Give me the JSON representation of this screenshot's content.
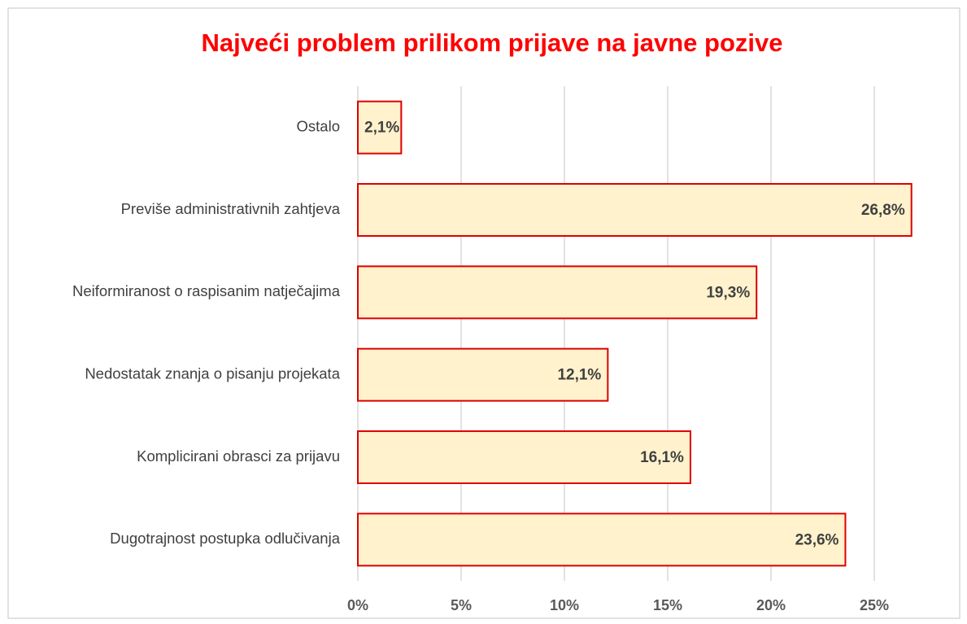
{
  "chart_data": {
    "type": "bar",
    "orientation": "horizontal",
    "title": "Najveći problem prilikom prijave na javne pozive",
    "categories": [
      "Ostalo",
      "Previše administrativnih zahtjeva",
      "Neiformiranost o raspisanim natječajima",
      "Nedostatak znanja o pisanju projekata",
      "Komplicirani obrasci za prijavu",
      "Dugotrajnost postupka odlučivanja"
    ],
    "values": [
      2.1,
      26.8,
      19.3,
      12.1,
      16.1,
      23.6
    ],
    "value_labels": [
      "2,1%",
      "26,8%",
      "19,3%",
      "12,1%",
      "16,1%",
      "23,6%"
    ],
    "color": "#fff2cc",
    "edge_color": "#e00000",
    "xlim": [
      0,
      28
    ],
    "xticks": [
      {
        "value": 0,
        "label": "0%"
      },
      {
        "value": 5,
        "label": "5%"
      },
      {
        "value": 10,
        "label": "10%"
      },
      {
        "value": 15,
        "label": "15%"
      },
      {
        "value": 20,
        "label": "20%"
      },
      {
        "value": 25,
        "label": "25%"
      }
    ],
    "grid": true
  }
}
